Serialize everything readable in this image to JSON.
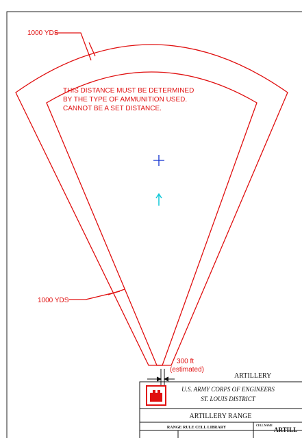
{
  "top_dimension": "1000 YDS",
  "note": [
    "THIS DISTANCE MUST BE DETERMINED",
    "BY THE TYPE OF AMMUNITION USED.",
    "CANNOT BE A SET DISTANCE."
  ],
  "side_dimension": "1000 YDS",
  "base_dimension": [
    "300 ft",
    "(estimated)"
  ],
  "label": "ARTILLERY",
  "title_block": {
    "organization": "U.S. ARMY CORPS OF ENGINEERS",
    "district": "ST. LOUIS DISTRICT",
    "drawing_title": "ARTILLERY RANGE",
    "library": "RANGE RULE CELL LIBRARY",
    "cell_name_label": "CELL NAME",
    "cell_name": "ARTILL"
  }
}
